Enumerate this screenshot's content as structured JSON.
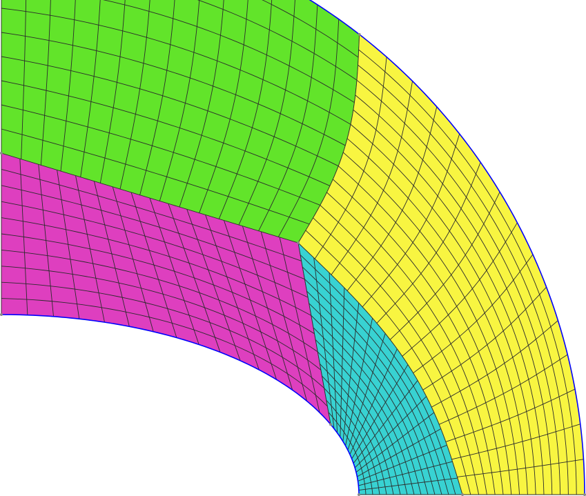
{
  "mesh": {
    "blocks": [
      {
        "name": "magenta",
        "color": "#de3fbf",
        "nu": 16,
        "nv": 10
      },
      {
        "name": "green",
        "color": "#62e42a",
        "nu": 15,
        "nv": 10
      },
      {
        "name": "cyan",
        "color": "#38d2d2",
        "nu": 16,
        "nv": 15
      },
      {
        "name": "yellow",
        "color": "#f8f541",
        "nu": 15,
        "nv": 15
      }
    ],
    "boundary_color": "#0000ff",
    "grid_line_color": "#2b2b2b"
  }
}
